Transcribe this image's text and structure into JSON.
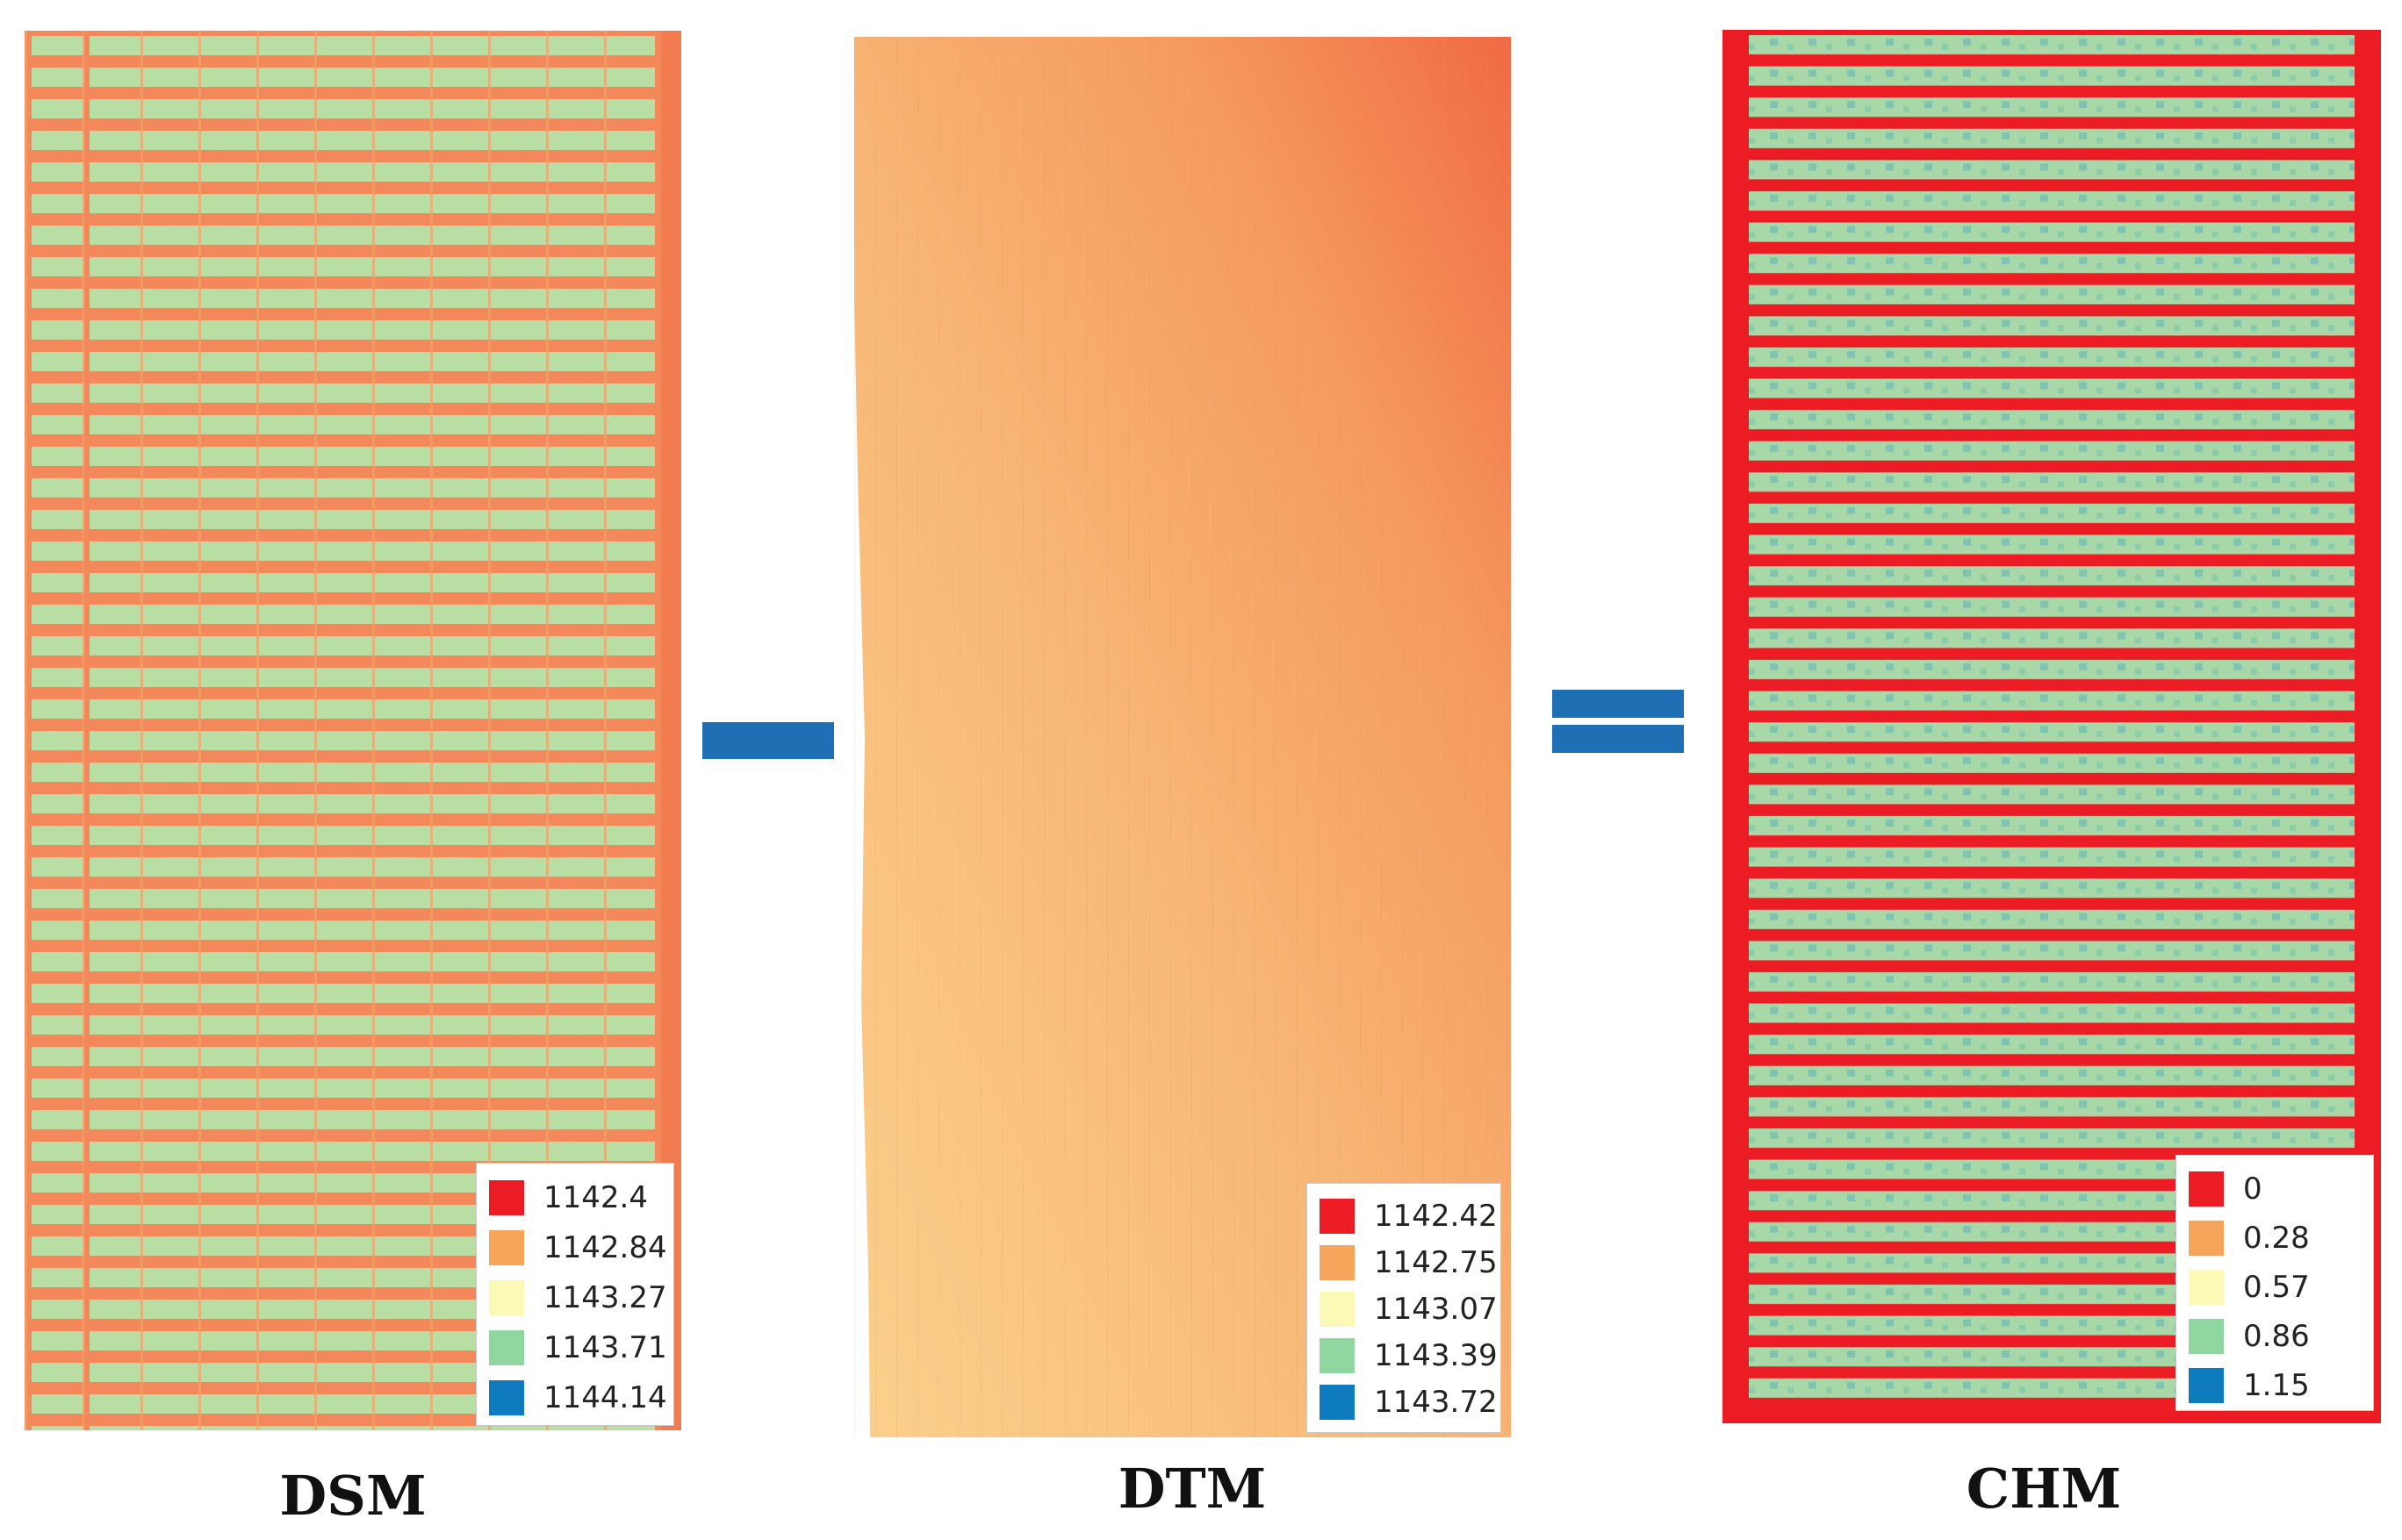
{
  "panels": {
    "dsm": {
      "title": "DSM",
      "legend": [
        {
          "value": "1142.4",
          "color": "#ec1c24"
        },
        {
          "value": "1142.84",
          "color": "#f8a55c"
        },
        {
          "value": "1143.27",
          "color": "#fbf9b6"
        },
        {
          "value": "1143.71",
          "color": "#8fd6a0"
        },
        {
          "value": "1144.14",
          "color": "#0e7bbf"
        }
      ]
    },
    "dtm": {
      "title": "DTM",
      "legend": [
        {
          "value": "1142.42",
          "color": "#ec1c24"
        },
        {
          "value": "1142.75",
          "color": "#f8a55c"
        },
        {
          "value": "1143.07",
          "color": "#fbf9b6"
        },
        {
          "value": "1143.39",
          "color": "#8fd6a0"
        },
        {
          "value": "1143.72",
          "color": "#0e7bbf"
        }
      ]
    },
    "chm": {
      "title": "CHM",
      "legend": [
        {
          "value": "0",
          "color": "#ec1c24"
        },
        {
          "value": "0.28",
          "color": "#f8a55c"
        },
        {
          "value": "0.57",
          "color": "#fbf9b6"
        },
        {
          "value": "0.86",
          "color": "#8fd6a0"
        },
        {
          "value": "1.15",
          "color": "#0e7bbf"
        }
      ]
    }
  },
  "operators": {
    "minus": "minus-sign",
    "equals": "equals-sign"
  }
}
